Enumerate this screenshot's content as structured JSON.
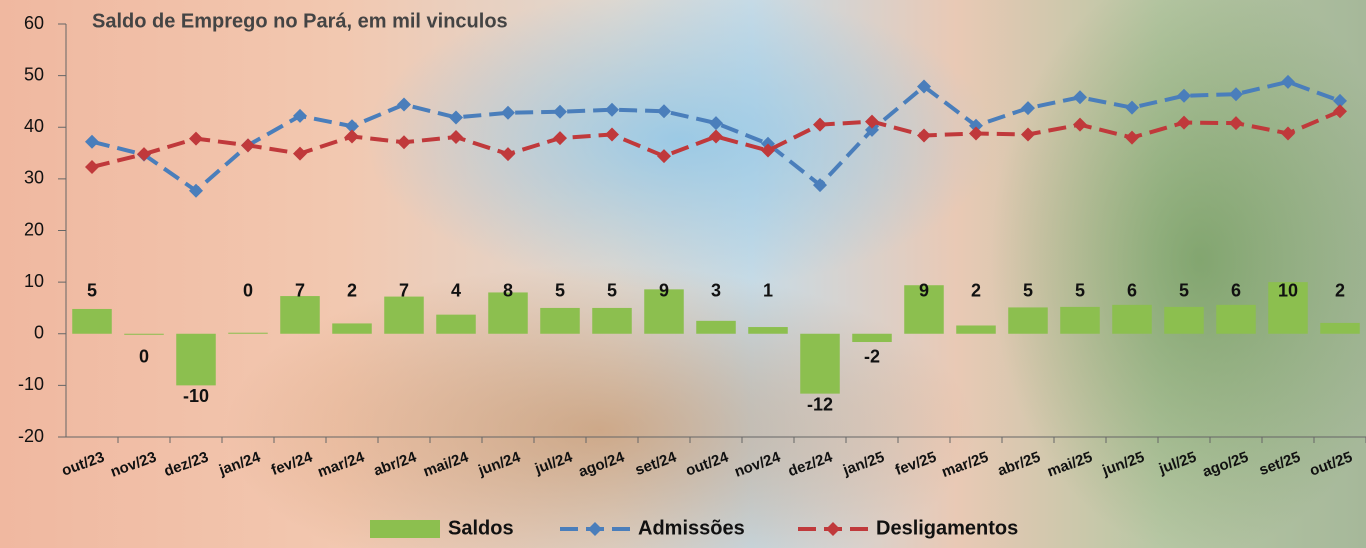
{
  "chart_data": {
    "type": "combo",
    "title": "Saldo de Emprego no Pará, em mil vinculos",
    "categories": [
      "out/23",
      "nov/23",
      "dez/23",
      "jan/24",
      "fev/24",
      "mar/24",
      "abr/24",
      "mai/24",
      "jun/24",
      "jul/24",
      "ago/24",
      "set/24",
      "out/24",
      "nov/24",
      "dez/24",
      "jan/25",
      "fev/25",
      "mar/25",
      "abr/25",
      "mai/25",
      "jun/25",
      "jul/25",
      "ago/25",
      "set/25",
      "out/25"
    ],
    "series": [
      {
        "name": "Saldos",
        "type": "bar",
        "color": "#8cbf4f",
        "values": [
          4.8,
          -0.2,
          -10,
          0.2,
          7.3,
          2.0,
          7.2,
          3.7,
          8.0,
          5.0,
          5.0,
          8.6,
          2.5,
          1.3,
          -11.6,
          -1.6,
          9.4,
          1.6,
          5.1,
          5.2,
          5.6,
          5.2,
          5.6,
          10.0,
          2.1
        ],
        "value_labels": [
          "5",
          "0",
          "-10",
          "0",
          "7",
          "2",
          "7",
          "4",
          "8",
          "5",
          "5",
          "9",
          "3",
          "1",
          "-12",
          "-2",
          "9",
          "2",
          "5",
          "5",
          "6",
          "5",
          "6",
          "10",
          "2"
        ]
      },
      {
        "name": "Admissões",
        "type": "line",
        "color": "#4a7ebb",
        "values": [
          37.2,
          34.7,
          27.7,
          36.5,
          42.2,
          40.2,
          44.4,
          41.9,
          42.8,
          43.0,
          43.4,
          43.1,
          40.8,
          36.8,
          28.8,
          39.5,
          47.9,
          40.3,
          43.7,
          45.8,
          43.8,
          46.1,
          46.4,
          48.8,
          45.1
        ]
      },
      {
        "name": "Desligamentos",
        "type": "line",
        "color": "#c0393b",
        "values": [
          32.3,
          34.8,
          37.8,
          36.5,
          34.9,
          38.2,
          37.1,
          38.1,
          34.8,
          37.9,
          38.6,
          34.4,
          38.2,
          35.5,
          40.5,
          41.1,
          38.4,
          38.8,
          38.6,
          40.5,
          38.0,
          40.9,
          40.8,
          38.8,
          43.1
        ]
      }
    ],
    "ylim": [
      -20,
      60
    ],
    "yticks": [
      -20,
      -10,
      0,
      10,
      20,
      30,
      40,
      50,
      60
    ],
    "legend": "bottom"
  }
}
